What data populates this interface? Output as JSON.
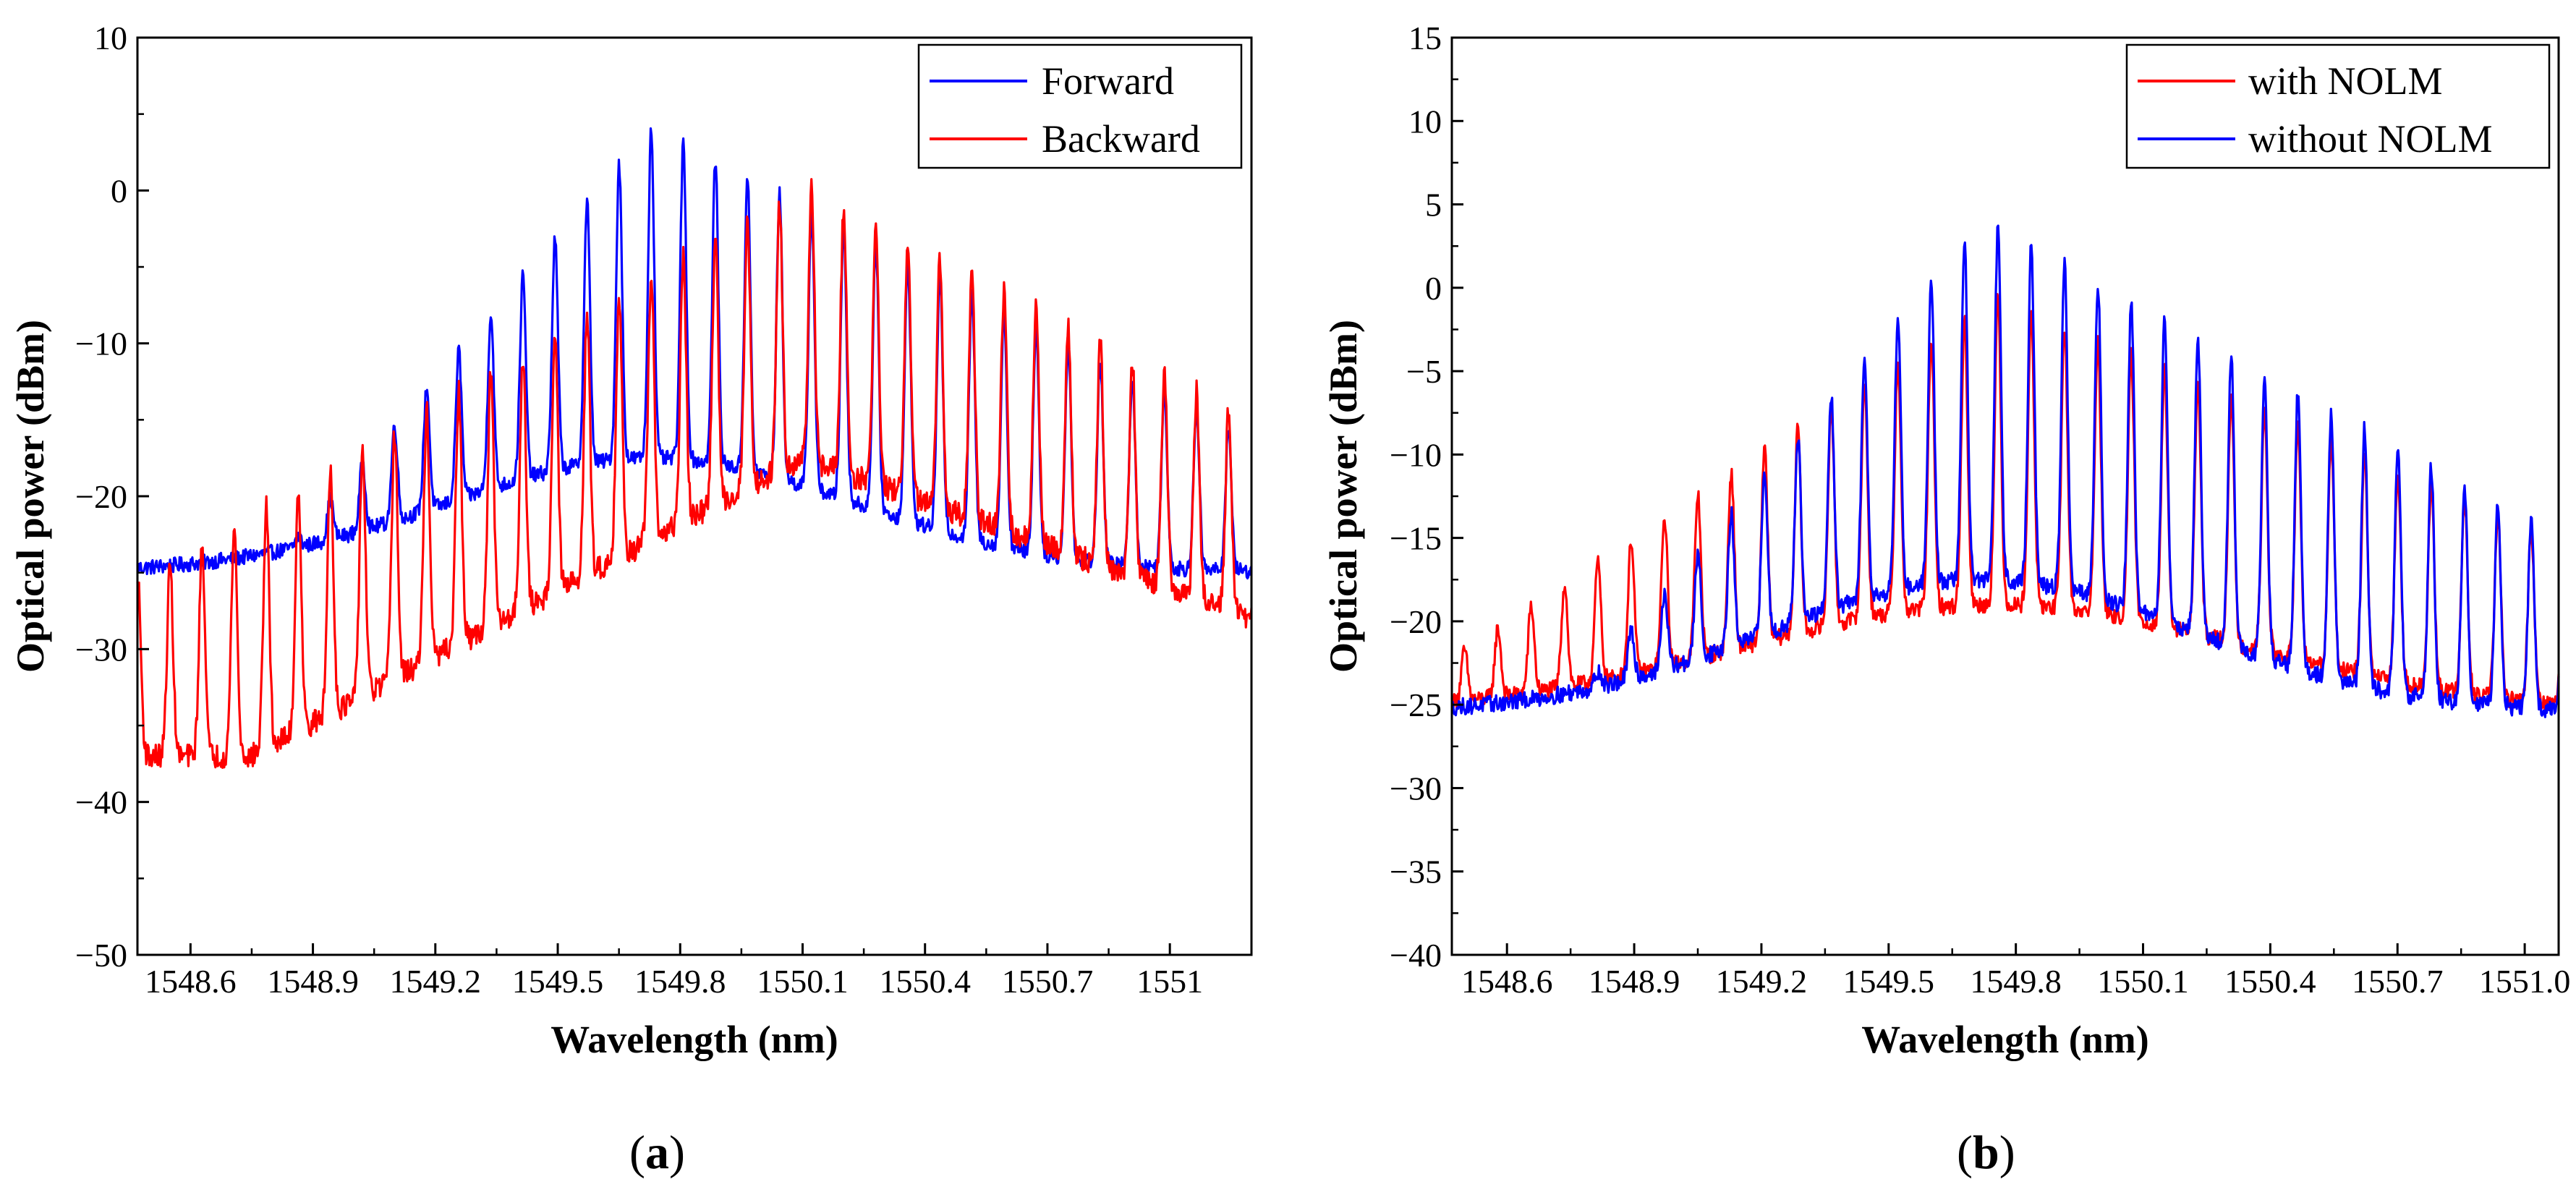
{
  "figure": {
    "panel_a_label": "a",
    "panel_b_label": "b"
  },
  "chart_data": [
    {
      "id": "a",
      "type": "line",
      "xlabel": "Wavelength (nm)",
      "ylabel": "Optical power (dBm)",
      "xlim": [
        1548.47,
        1551.2
      ],
      "ylim": [
        -50,
        10
      ],
      "xticks": [
        1548.6,
        1548.9,
        1549.2,
        1549.5,
        1549.8,
        1550.1,
        1550.4,
        1550.7,
        1551
      ],
      "xtick_labels": [
        "1548.6",
        "1548.9",
        "1549.2",
        "1549.5",
        "1549.8",
        "1550.1",
        "1550.4",
        "1550.7",
        "1551"
      ],
      "yticks": [
        -50,
        -40,
        -30,
        -20,
        -10,
        0,
        10
      ],
      "ytick_labels": [
        "−50",
        "−40",
        "−30",
        "−20",
        "−10",
        "0",
        "10"
      ],
      "legend_position": "top-right",
      "comb_spacing_nm": 0.0786,
      "comb_start_nm": 1548.55,
      "series": [
        {
          "name": "Forward",
          "color": "#0000ff",
          "center_nm": 1549.73,
          "peak_max_dBm": 4.2,
          "peak_slope_left_dB_per_nm": 31,
          "peak_slope_right_dB_per_nm": 14,
          "floor_max_dBm": -17.5,
          "floor_edge_dBm": -25,
          "floor_width_nm": 0.5
        },
        {
          "name": "Backward",
          "color": "#ff0000",
          "center_nm": 1550.1,
          "peak_max_dBm": 0.3,
          "peak_slope_left_dB_per_nm": 16,
          "peak_slope_right_dB_per_nm": 14,
          "floor_max_dBm": -17.5,
          "floor_left_dBm": -37,
          "floor_right_dBm": -28
        }
      ]
    },
    {
      "id": "b",
      "type": "line",
      "xlabel": "Wavelength (nm)",
      "ylabel": "Optical power (dBm)",
      "xlim": [
        1548.47,
        1551.08
      ],
      "ylim": [
        -40,
        15
      ],
      "xticks": [
        1548.6,
        1548.9,
        1549.2,
        1549.5,
        1549.8,
        1550.1,
        1550.4,
        1550.7,
        1551.0
      ],
      "xtick_labels": [
        "1548.6",
        "1548.9",
        "1549.2",
        "1549.5",
        "1549.8",
        "1550.1",
        "1550.4",
        "1550.7",
        "1551.0"
      ],
      "yticks": [
        -40,
        -35,
        -30,
        -25,
        -20,
        -15,
        -10,
        -5,
        0,
        5,
        10,
        15
      ],
      "ytick_labels": [
        "−40",
        "−35",
        "−30",
        "−25",
        "−20",
        "−15",
        "−10",
        "−5",
        "0",
        "5",
        "10",
        "15"
      ],
      "legend_position": "top-right",
      "comb_spacing_nm": 0.0786,
      "comb_start_nm": 1548.5,
      "series": [
        {
          "name": "with NOLM",
          "color": "#ff0000",
          "center_nm": 1549.75,
          "peak_max_dBm": -0.5,
          "peak_slope_left_dB_per_nm": 17,
          "peak_slope_right_dB_per_nm": 11,
          "floor_max_dBm": -19,
          "floor_edge_dBm": -25.5,
          "floor_width_nm": 0.6
        },
        {
          "name": "without NOLM",
          "color": "#0000ff",
          "center_nm": 1549.72,
          "peak_max_dBm": 4.2,
          "peak_slope_left_dB_per_nm": 30,
          "peak_slope_right_dB_per_nm": 14,
          "floor_max_dBm": -17.5,
          "floor_edge_dBm": -25.5,
          "floor_width_nm": 0.5
        }
      ]
    }
  ]
}
